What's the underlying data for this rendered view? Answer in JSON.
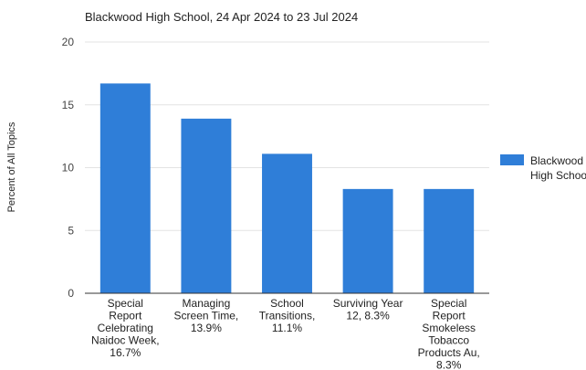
{
  "chart_data": {
    "type": "bar",
    "title": "Blackwood High School, 24 Apr 2024 to 23 Jul 2024",
    "ylabel": "Percent of All Topics",
    "xlabel": "",
    "ylim": [
      0,
      20
    ],
    "yticks": [
      0,
      5,
      10,
      15,
      20
    ],
    "grid": true,
    "legend_position": "right",
    "series": [
      {
        "name": "Blackwood High School",
        "color": "#2f7ed8",
        "values": [
          16.7,
          13.9,
          11.1,
          8.3,
          8.3
        ]
      }
    ],
    "categories": [
      [
        "Special",
        "Report",
        "Celebrating",
        "Naidoc Week,",
        "16.7%"
      ],
      [
        "Managing",
        "Screen Time,",
        "13.9%"
      ],
      [
        "School",
        "Transitions,",
        "11.1%"
      ],
      [
        "Surviving Year",
        "12, 8.3%"
      ],
      [
        "Special",
        "Report",
        "Smokeless",
        "Tobacco",
        "Products Au,",
        "8.3%"
      ]
    ],
    "legend_lines": [
      "Blackwood",
      "High School"
    ]
  }
}
